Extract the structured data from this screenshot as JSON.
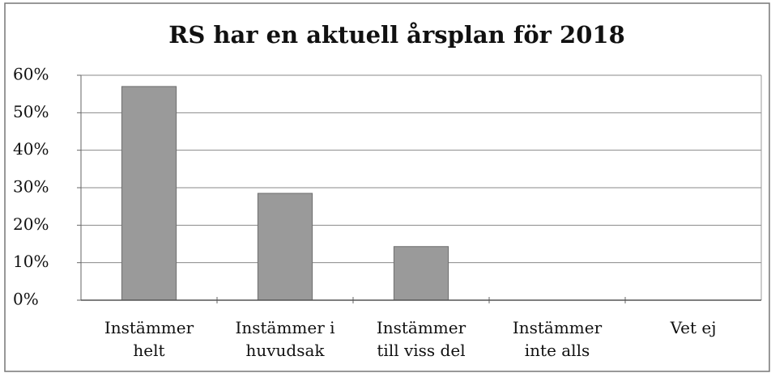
{
  "chart_data": {
    "type": "bar",
    "title": "RS har en aktuell årsplan för 2018",
    "categories": [
      [
        "Instämmer",
        "helt"
      ],
      [
        "Instämmer i",
        "huvudsak"
      ],
      [
        "Instämmer",
        "till viss del"
      ],
      [
        "Instämmer",
        "inte alls"
      ],
      [
        "Vet ej"
      ]
    ],
    "values": [
      57,
      28.5,
      14.3,
      0,
      0
    ],
    "color": "#9a9a9a",
    "ylim": [
      0,
      60
    ],
    "yticks": [
      {
        "value": 0,
        "label": "0%"
      },
      {
        "value": 10,
        "label": "10%"
      },
      {
        "value": 20,
        "label": "20%"
      },
      {
        "value": 30,
        "label": "30%"
      },
      {
        "value": 40,
        "label": "40%"
      },
      {
        "value": 50,
        "label": "50%"
      },
      {
        "value": 60,
        "label": "60%"
      }
    ],
    "grid": true
  }
}
